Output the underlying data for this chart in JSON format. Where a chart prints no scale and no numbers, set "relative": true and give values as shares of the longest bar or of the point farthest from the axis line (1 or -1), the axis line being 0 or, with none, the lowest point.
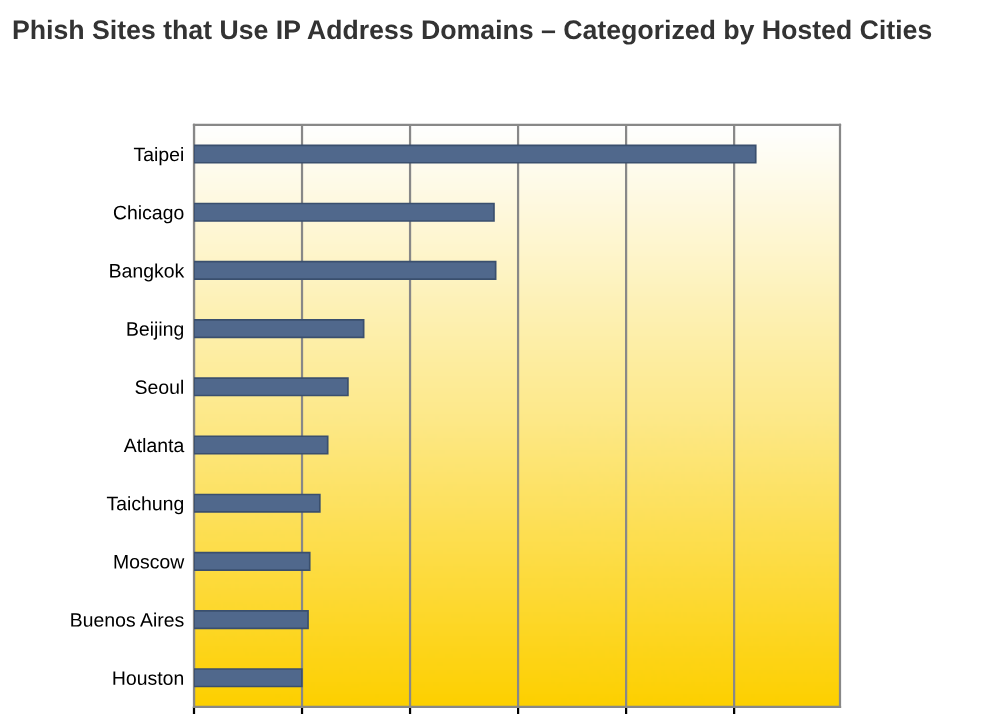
{
  "chart_data": {
    "type": "bar",
    "orientation": "horizontal",
    "relative": true,
    "title": "Phish Sites that Use IP Address Domains – Categorized by Hosted Cities",
    "categories": [
      "Taipei",
      "Chicago",
      "Bangkok",
      "Beijing",
      "Seoul",
      "Atlanta",
      "Taichung",
      "Moscow",
      "Buenos Aires",
      "Houston"
    ],
    "values": [
      1,
      0.534,
      0.537,
      0.302,
      0.274,
      0.238,
      0.224,
      0.206,
      0.203,
      0.192
    ],
    "color": "#50688c",
    "grid": "x",
    "tick_labels": "y"
  }
}
